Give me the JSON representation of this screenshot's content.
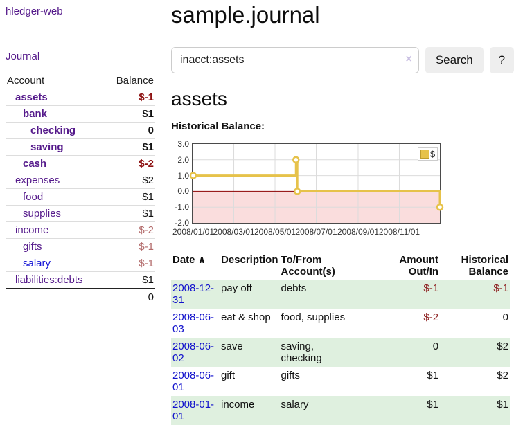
{
  "colors": {
    "link_purple": "#551a8b",
    "link_blue": "#1515d6",
    "negative_strong": "#8e1212",
    "negative_soft": "#b36b6b",
    "register_negative": "#8e2222",
    "row_green": "#dff0df",
    "chart_line_gold": "#e6c24a",
    "zero_line_red": "#8b0000",
    "negative_region_pink": "#fadddd",
    "button_gray": "#eeeeee"
  },
  "sidebar": {
    "brand": "hledger-web",
    "journal_link": "Journal",
    "accounts": {
      "header": {
        "account": "Account",
        "balance": "Balance"
      },
      "rows": [
        {
          "name": "assets",
          "balance": "$-1"
        },
        {
          "name": "bank",
          "balance": "$1"
        },
        {
          "name": "checking",
          "balance": "0"
        },
        {
          "name": "saving",
          "balance": "$1"
        },
        {
          "name": "cash",
          "balance": "$-2"
        },
        {
          "name": "expenses",
          "balance": "$2"
        },
        {
          "name": "food",
          "balance": "$1"
        },
        {
          "name": "supplies",
          "balance": "$1"
        },
        {
          "name": "income",
          "balance": "$-2"
        },
        {
          "name": "gifts",
          "balance": "$-1"
        },
        {
          "name": "salary",
          "balance": "$-1"
        },
        {
          "name": "liabilities:debts",
          "balance": "$1"
        }
      ],
      "total": "0"
    }
  },
  "main": {
    "title": "sample.journal",
    "search": {
      "value": "inacct:assets",
      "clear_icon": "×",
      "search_button": "Search",
      "help_button": "?"
    },
    "account_heading": "assets",
    "chart_title": "Historical Balance:"
  },
  "chart_data": {
    "type": "line",
    "step": true,
    "title": "Historical Balance",
    "ylim": [
      -2,
      3
    ],
    "yticks": [
      3,
      2,
      1,
      0,
      -1,
      -2
    ],
    "xrange_days": 365,
    "xticks": [
      {
        "label": "2008/01/01",
        "day": 0
      },
      {
        "label": "2008/03/01",
        "day": 60
      },
      {
        "label": "2008/05/01",
        "day": 121
      },
      {
        "label": "2008/07/01",
        "day": 182
      },
      {
        "label": "2008/09/01",
        "day": 244
      },
      {
        "label": "2008/11/01",
        "day": 305
      }
    ],
    "series": [
      {
        "name": "$",
        "color": "#e6c24a",
        "points": [
          {
            "date": "2008-01-01",
            "day": 0,
            "value": 1
          },
          {
            "date": "2008-06-01",
            "day": 152,
            "value": 2
          },
          {
            "date": "2008-06-03",
            "day": 154,
            "value": 0
          },
          {
            "date": "2008-12-31",
            "day": 365,
            "value": -1
          }
        ]
      }
    ],
    "legend": {
      "label": "$",
      "position": "top-right"
    },
    "grid": true,
    "negative_region_shaded": true
  },
  "register": {
    "sort_icon": "∧",
    "headers": {
      "date": "Date",
      "description": "Description",
      "tofrom": "To/From\nAccount(s)",
      "amount": "Amount\nOut/In",
      "balance": "Historical\nBalance"
    },
    "rows": [
      {
        "date": "2008-12-31",
        "description": "pay off",
        "accounts": "debts",
        "amount": "$-1",
        "balance": "$-1"
      },
      {
        "date": "2008-06-03",
        "description": "eat & shop",
        "accounts": "food, supplies",
        "amount": "$-2",
        "balance": "0"
      },
      {
        "date": "2008-06-02",
        "description": "save",
        "accounts": "saving,\nchecking",
        "amount": "0",
        "balance": "$2"
      },
      {
        "date": "2008-06-01",
        "description": "gift",
        "accounts": "gifts",
        "amount": "$1",
        "balance": "$2"
      },
      {
        "date": "2008-01-01",
        "description": "income",
        "accounts": "salary",
        "amount": "$1",
        "balance": "$1"
      }
    ]
  }
}
